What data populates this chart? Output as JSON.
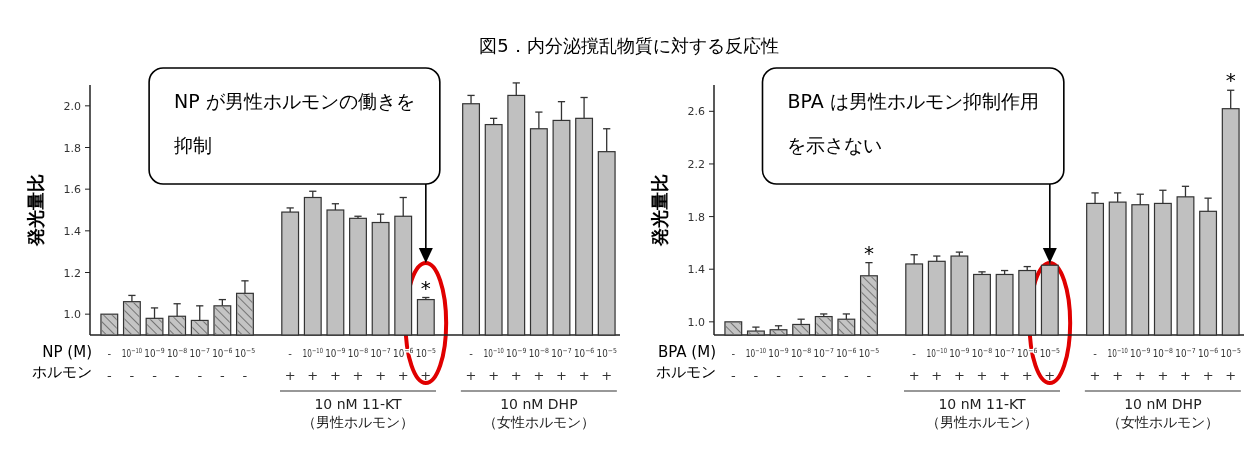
{
  "chart_data": [
    {
      "type": "bar",
      "title": "図5．内分泌撹乱物質に対する反応性",
      "xlabel": "NP (M)\nホルモン",
      "ylabel": "発光量比",
      "categories": [
        "-\n-",
        "10$^{−10}$\n-",
        "10$^{−9}$\n-",
        "10$^{−8}$\n-",
        "10$^{−7}$\n-",
        "10$^{−6}$\n-",
        "10$^{−5}$\n-",
        null,
        "-\n+",
        "10$^{−10}$\n+",
        "10$^{−9}$\n+",
        "10$^{−8}$\n+",
        "10$^{−7}$\n+",
        "10$^{−6}$\n+",
        "10$^{−5}$\n+",
        null,
        "-\n+",
        "10$^{−10}$\n+",
        "10$^{−9}$\n+",
        "10$^{−8}$\n+",
        "10$^{−7}$\n+",
        "10$^{−6}$\n+",
        "10$^{−5}$\n+"
      ],
      "series": [
        {
          "color": "#c4c4c4",
          "values": [
            1.0,
            1.06,
            0.98,
            0.99,
            0.97,
            1.04,
            1.1,
            null,
            null,
            null,
            null,
            null,
            null,
            null,
            null,
            null,
            null,
            null,
            null,
            null,
            null,
            null,
            null
          ],
          "errors": [
            null,
            0.03,
            0.05,
            0.06,
            0.07,
            0.03,
            0.06,
            null,
            null,
            null,
            null,
            null,
            null,
            null,
            null,
            null,
            null,
            null,
            null,
            null,
            null,
            null,
            null
          ]
        },
        {
          "color": "#c0c0c0",
          "values": [
            null,
            null,
            null,
            null,
            null,
            null,
            null,
            null,
            1.49,
            1.56,
            1.5,
            1.46,
            1.44,
            1.47,
            1.07,
            null,
            2.01,
            1.91,
            2.05,
            1.89,
            1.93,
            1.94,
            1.78
          ],
          "errors": [
            null,
            null,
            null,
            null,
            null,
            null,
            null,
            null,
            0.02,
            0.03,
            0.03,
            0.01,
            0.04,
            0.09,
            0.01,
            null,
            0.04,
            0.03,
            0.06,
            0.08,
            0.09,
            0.1,
            0.11
          ],
          "value_labels": [
            null,
            null,
            null,
            null,
            null,
            null,
            null,
            null,
            null,
            null,
            null,
            null,
            null,
            null,
            "*",
            null,
            null,
            null,
            null,
            null,
            null,
            null,
            null
          ]
        }
      ],
      "ylim": [
        0.9,
        2.1
      ],
      "yticks": [
        {
          "value": 1,
          "label": "1.0"
        },
        {
          "value": 1.2,
          "label": "1.2"
        },
        {
          "value": 1.4,
          "label": "1.4"
        },
        {
          "value": 1.6,
          "label": "1.6"
        },
        {
          "value": 1.8,
          "label": "1.8"
        },
        {
          "value": 2,
          "label": "2.0"
        }
      ],
      "annotations": [
        "NP  が男性ホルモンの働きを抑制",
        "10 nM 11-KT\n（男性ホルモン）",
        "10 nM DHP\n（女性ホルモン）"
      ]
    },
    {
      "type": "bar",
      "xlabel": "BPA (M)\nホルモン",
      "ylabel": "発光量比",
      "categories": [
        "-\n-",
        "10$^{−10}$\n-",
        "10$^{−9}$\n-",
        "10$^{−8}$\n-",
        "10$^{−7}$\n-",
        "10$^{−6}$\n-",
        "10$^{−5}$\n-",
        null,
        "-\n+",
        "10$^{−10}$\n+",
        "10$^{−9}$\n+",
        "10$^{−8}$\n+",
        "10$^{−7}$\n+",
        "10$^{−6}$\n+",
        "10$^{−5}$\n+",
        null,
        "-\n+",
        "10$^{−10}$\n+",
        "10$^{−9}$\n+",
        "10$^{−8}$\n+",
        "10$^{−7}$\n+",
        "10$^{−6}$\n+",
        "10$^{−5}$\n+"
      ],
      "series": [
        {
          "color": "#c4c4c4",
          "values": [
            1.0,
            0.93,
            0.94,
            0.98,
            1.04,
            1.02,
            1.35,
            null,
            null,
            null,
            null,
            null,
            null,
            null,
            null,
            null,
            null,
            null,
            null,
            null,
            null,
            null,
            null
          ],
          "errors": [
            null,
            0.03,
            0.03,
            0.04,
            0.02,
            0.04,
            0.1,
            null,
            null,
            null,
            null,
            null,
            null,
            null,
            null,
            null,
            null,
            null,
            null,
            null,
            null,
            null,
            null
          ],
          "value_labels": [
            null,
            null,
            null,
            null,
            null,
            null,
            "*",
            null,
            null,
            null,
            null,
            null,
            null,
            null,
            null,
            null,
            null,
            null,
            null,
            null,
            null,
            null,
            null
          ]
        },
        {
          "color": "#c0c0c0",
          "values": [
            null,
            null,
            null,
            null,
            null,
            null,
            null,
            null,
            1.44,
            1.46,
            1.5,
            1.36,
            1.36,
            1.39,
            1.43,
            null,
            1.9,
            1.91,
            1.89,
            1.9,
            1.95,
            1.84,
            2.62
          ],
          "errors": [
            null,
            null,
            null,
            null,
            null,
            null,
            null,
            null,
            0.07,
            0.04,
            0.03,
            0.02,
            0.03,
            0.03,
            0.12,
            null,
            0.08,
            0.07,
            0.08,
            0.1,
            0.08,
            0.1,
            0.14
          ],
          "value_labels": [
            null,
            null,
            null,
            null,
            null,
            null,
            null,
            null,
            null,
            null,
            null,
            null,
            null,
            null,
            null,
            null,
            null,
            null,
            null,
            null,
            null,
            null,
            "*"
          ]
        }
      ],
      "ylim": [
        0.9,
        2.8
      ],
      "yticks": [
        {
          "value": 1,
          "label": "1.0"
        },
        {
          "value": 1.4,
          "label": "1.4"
        },
        {
          "value": 1.8,
          "label": "1.8"
        },
        {
          "value": 2.2,
          "label": "2.2"
        },
        {
          "value": 2.6,
          "label": "2.6"
        }
      ],
      "annotations": [
        "BPA  は男性ホルモン抑制作用を示さない",
        "10 nM 11-KT\n（男性ホルモン）",
        "10 nM DHP\n（女性ホルモン）"
      ]
    }
  ]
}
